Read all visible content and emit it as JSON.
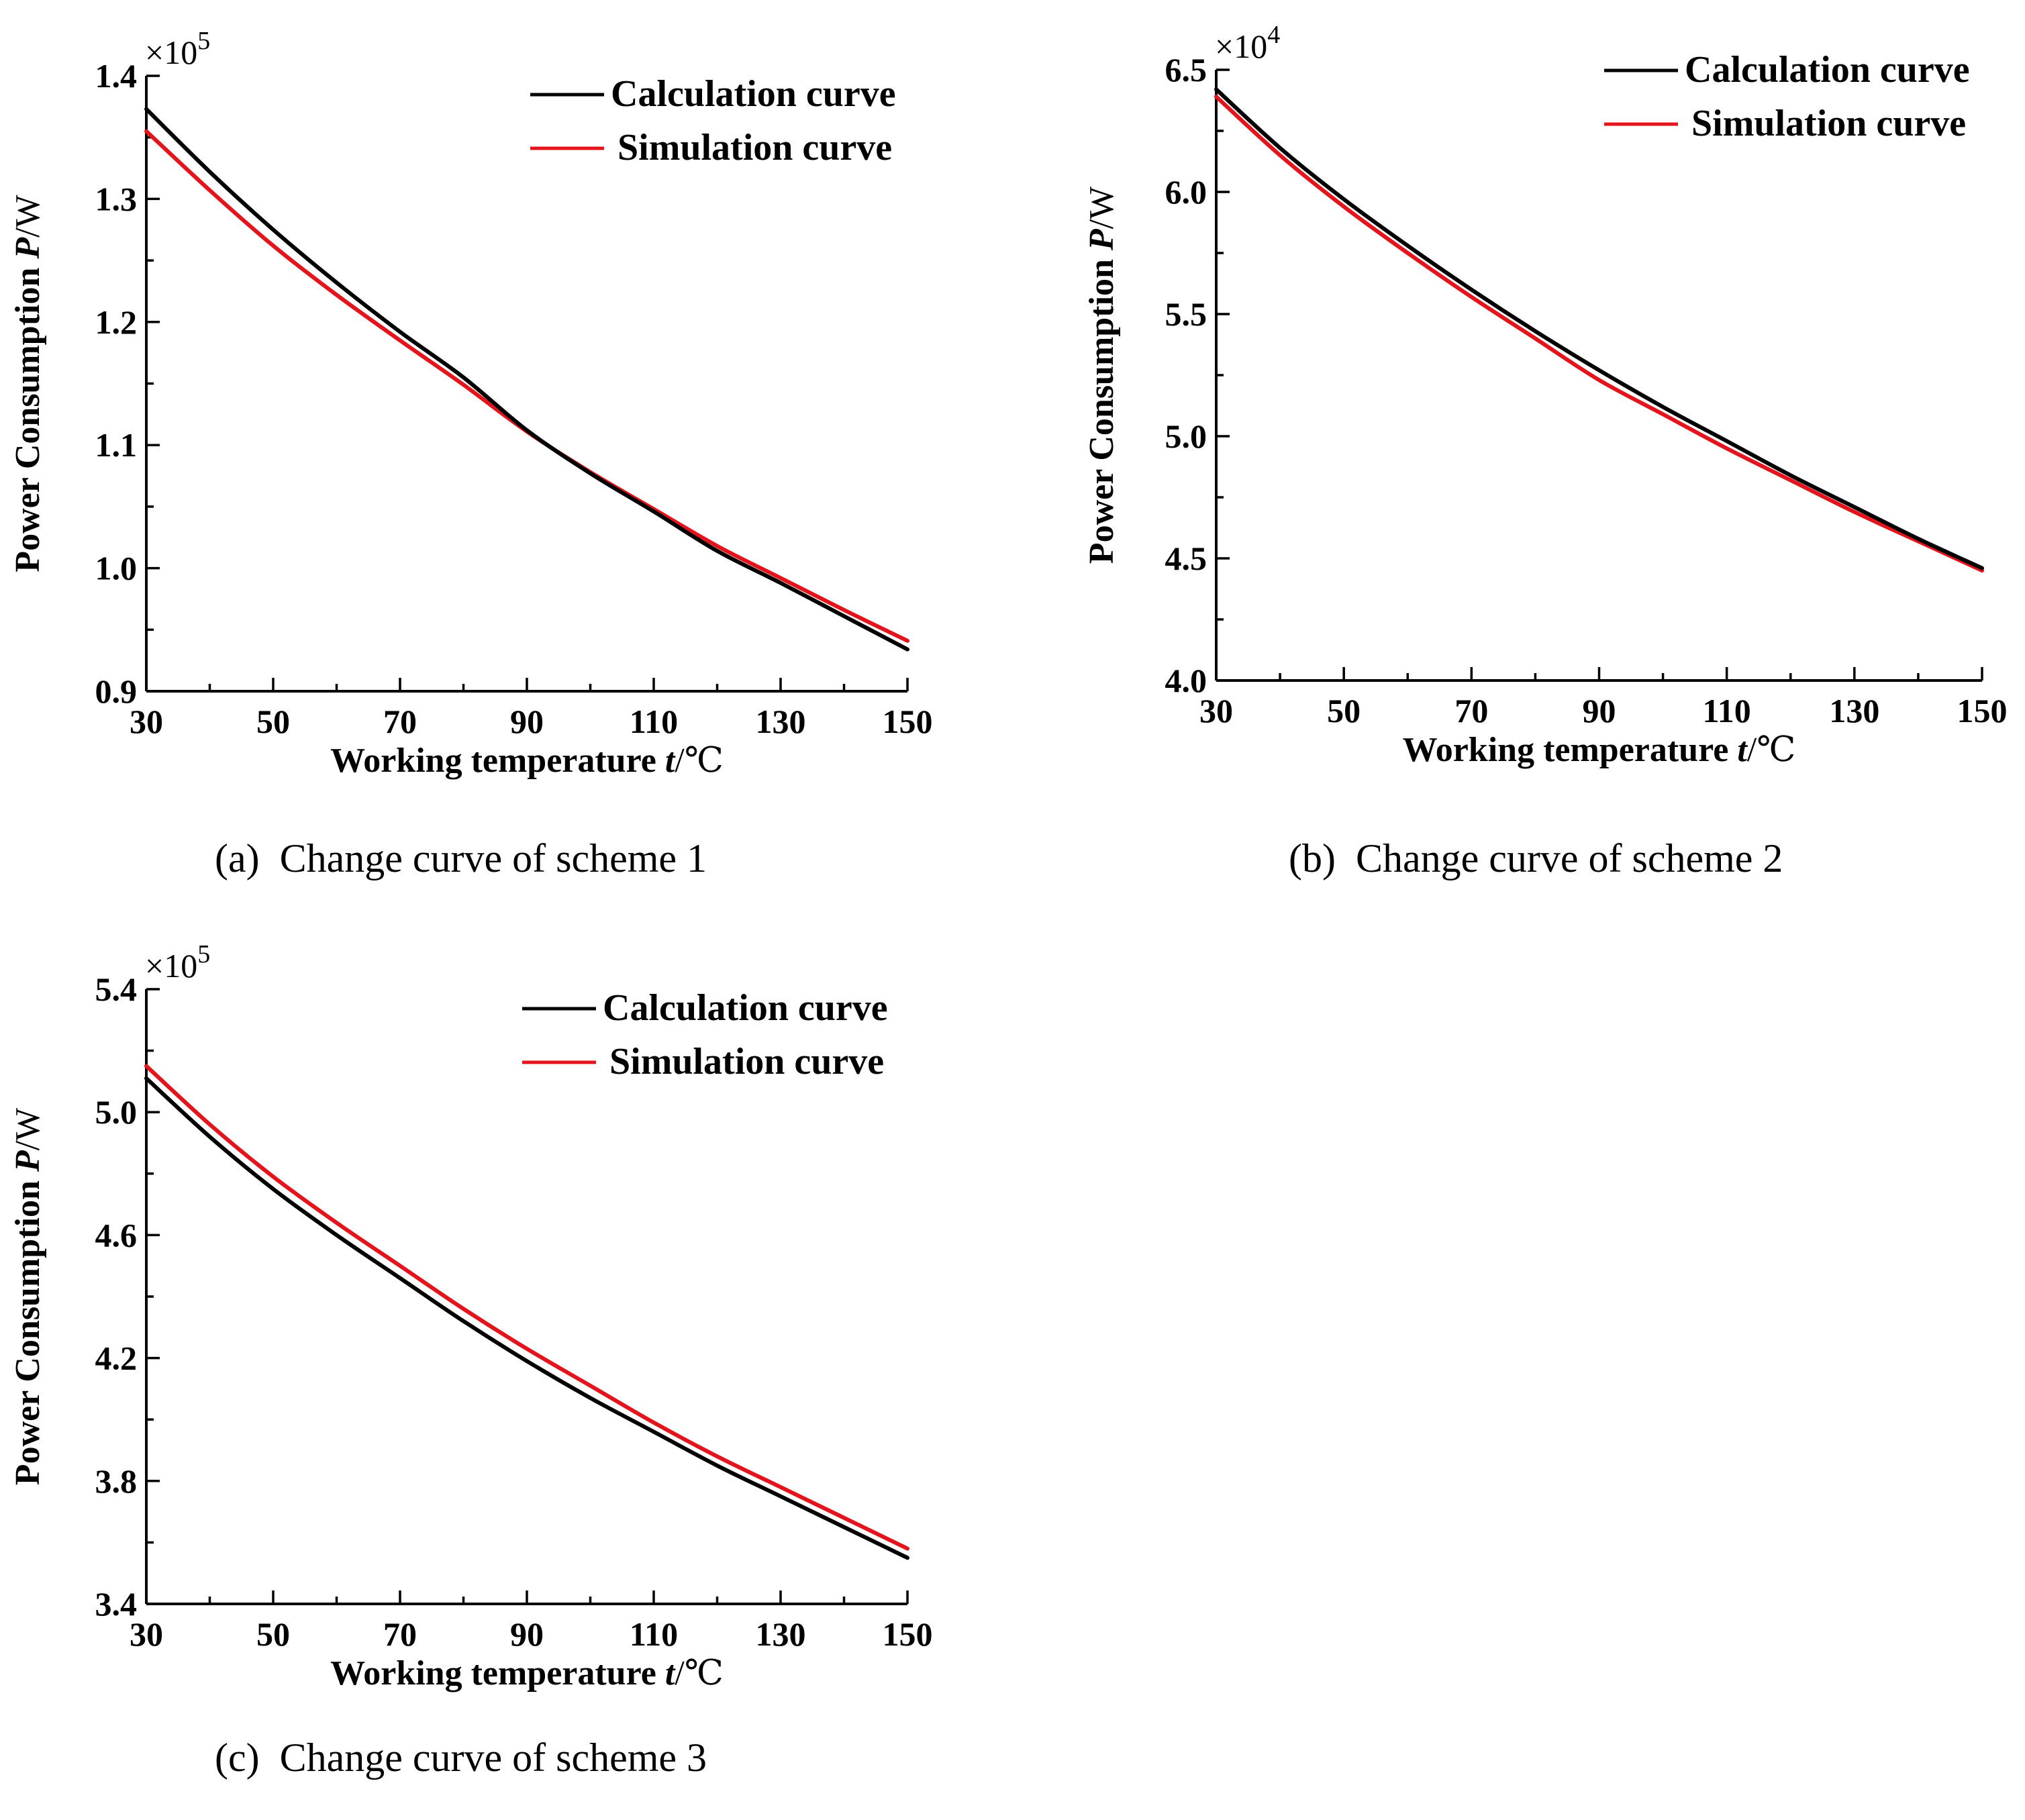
{
  "chart_data": [
    {
      "type": "line",
      "caption_tag": "(a)",
      "caption": "Change curve of scheme 1",
      "xlabel_prefix": "Working temperature ",
      "xlabel_var": "t",
      "xlabel_suffix": "/℃",
      "ylabel_prefix": "Power Consumption ",
      "ylabel_var": "P",
      "ylabel_suffix": "/W",
      "y_multiplier": "×10",
      "y_exponent": "5",
      "xlim": [
        30,
        150
      ],
      "ylim": [
        0.9,
        1.4
      ],
      "x_ticks": [
        "30",
        "50",
        "70",
        "90",
        "110",
        "130",
        "150"
      ],
      "y_ticks": [
        "0.9",
        "1.0",
        "1.1",
        "1.2",
        "1.3",
        "1.4"
      ],
      "legend_position": "top-right",
      "colors": {
        "calculation": "#000000",
        "simulation": "#e3141b"
      },
      "x": [
        30,
        40,
        50,
        60,
        70,
        80,
        90,
        100,
        110,
        120,
        130,
        140,
        150
      ],
      "series": [
        {
          "name": "Calculation curve",
          "values": [
            1.373,
            1.322,
            1.275,
            1.232,
            1.192,
            1.155,
            1.112,
            1.077,
            1.046,
            1.014,
            0.988,
            0.961,
            0.934
          ]
        },
        {
          "name": "Simulation curve",
          "values": [
            1.355,
            1.307,
            1.262,
            1.222,
            1.185,
            1.149,
            1.111,
            1.078,
            1.048,
            1.018,
            0.992,
            0.966,
            0.941
          ]
        }
      ]
    },
    {
      "type": "line",
      "caption_tag": "(b)",
      "caption": "Change curve of scheme 2",
      "xlabel_prefix": "Working temperature ",
      "xlabel_var": "t",
      "xlabel_suffix": "/℃",
      "ylabel_prefix": "Power Consumption ",
      "ylabel_var": "P",
      "ylabel_suffix": "/W",
      "y_multiplier": "×10",
      "y_exponent": "4",
      "xlim": [
        30,
        150
      ],
      "ylim": [
        4.0,
        6.5
      ],
      "x_ticks": [
        "30",
        "50",
        "70",
        "90",
        "110",
        "130",
        "150"
      ],
      "y_ticks": [
        "4.0",
        "4.5",
        "5.0",
        "5.5",
        "6.0",
        "6.5"
      ],
      "legend_position": "top-right",
      "colors": {
        "calculation": "#000000",
        "simulation": "#e3141b"
      },
      "x": [
        30,
        40,
        50,
        60,
        70,
        80,
        90,
        100,
        110,
        120,
        130,
        140,
        150
      ],
      "series": [
        {
          "name": "Calculation curve",
          "values": [
            6.42,
            6.18,
            5.97,
            5.78,
            5.6,
            5.43,
            5.27,
            5.12,
            4.98,
            4.84,
            4.71,
            4.58,
            4.46
          ]
        },
        {
          "name": "Simulation curve",
          "values": [
            6.39,
            6.15,
            5.94,
            5.75,
            5.57,
            5.4,
            5.23,
            5.09,
            4.95,
            4.82,
            4.69,
            4.57,
            4.45
          ]
        }
      ]
    },
    {
      "type": "line",
      "caption_tag": "(c)",
      "caption": "Change curve of scheme 3",
      "xlabel_prefix": "Working temperature ",
      "xlabel_var": "t",
      "xlabel_suffix": "/℃",
      "ylabel_prefix": "Power Consumption ",
      "ylabel_var": "P",
      "ylabel_suffix": "/W",
      "y_multiplier": "×10",
      "y_exponent": "5",
      "xlim": [
        30,
        150
      ],
      "ylim": [
        3.4,
        5.4
      ],
      "x_ticks": [
        "30",
        "50",
        "70",
        "90",
        "110",
        "130",
        "150"
      ],
      "y_ticks": [
        "3.4",
        "3.8",
        "4.2",
        "4.6",
        "5.0",
        "5.4"
      ],
      "legend_position": "top-right",
      "colors": {
        "calculation": "#000000",
        "simulation": "#e3141b"
      },
      "x": [
        30,
        40,
        50,
        60,
        70,
        80,
        90,
        100,
        110,
        120,
        130,
        140,
        150
      ],
      "series": [
        {
          "name": "Calculation curve",
          "values": [
            5.11,
            4.92,
            4.75,
            4.6,
            4.46,
            4.32,
            4.19,
            4.07,
            3.96,
            3.85,
            3.75,
            3.65,
            3.55
          ]
        },
        {
          "name": "Simulation curve",
          "values": [
            5.15,
            4.96,
            4.79,
            4.64,
            4.5,
            4.36,
            4.23,
            4.11,
            3.99,
            3.88,
            3.78,
            3.68,
            3.58
          ]
        }
      ]
    }
  ]
}
